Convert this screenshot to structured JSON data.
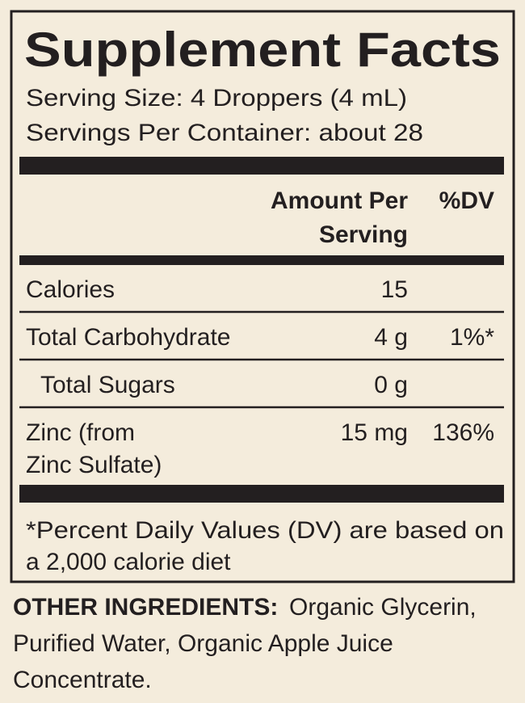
{
  "header": {
    "title": "Supplement Facts",
    "serving_size": "Serving Size: 4 Droppers (4 mL)",
    "servings_per_container": "Servings Per Container: about 28"
  },
  "table": {
    "columns": {
      "amount": [
        "Amount Per",
        "Serving"
      ],
      "dv": "%DV"
    },
    "rows": [
      {
        "name": [
          "Calories"
        ],
        "amount": "15"
      },
      {
        "name": [
          "Total Carbohydrate"
        ],
        "amount": "4 g",
        "dv": "1%*"
      },
      {
        "name": [
          "Total Sugars"
        ],
        "amount": "0 g",
        "indent": true
      },
      {
        "name": [
          "Zinc (from",
          "Zinc Sulfate)"
        ],
        "amount": "15 mg",
        "dv": "136%"
      }
    ]
  },
  "footnote": [
    "*Percent Daily Values (DV) are based on",
    "a 2,000 calorie diet"
  ],
  "other_ingredients": {
    "label": "OTHER INGREDIENTS:",
    "lines": [
      "Organic Glycerin,",
      "Purified Water, Organic Apple Juice",
      "Concentrate."
    ]
  }
}
